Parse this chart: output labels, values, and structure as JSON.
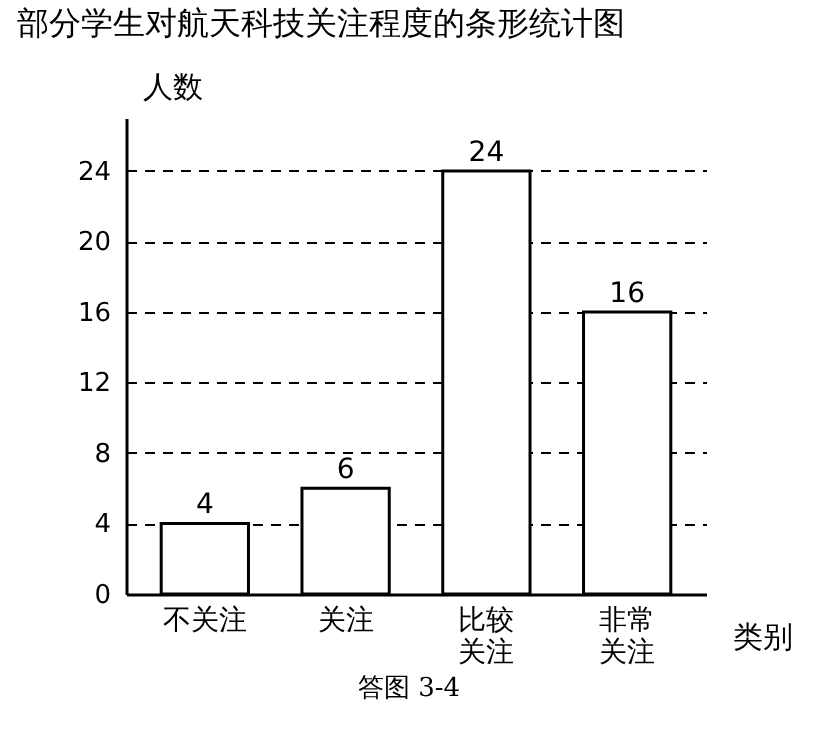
{
  "chart_data": {
    "type": "bar",
    "title": "部分学生对航天科技关注程度的条形统计图",
    "categories": [
      "不关注",
      "关注",
      "比较关注",
      "非常关注"
    ],
    "values": [
      4,
      6,
      24,
      16
    ],
    "color": "#ffffff",
    "ylabel": "人数",
    "xlabel": "类别",
    "ylim": [
      0,
      27
    ],
    "yticks": [
      0,
      4,
      8,
      12,
      16,
      20,
      24
    ],
    "grid": "y",
    "data_labels": true,
    "annotations": [
      "答图 3-4"
    ]
  }
}
